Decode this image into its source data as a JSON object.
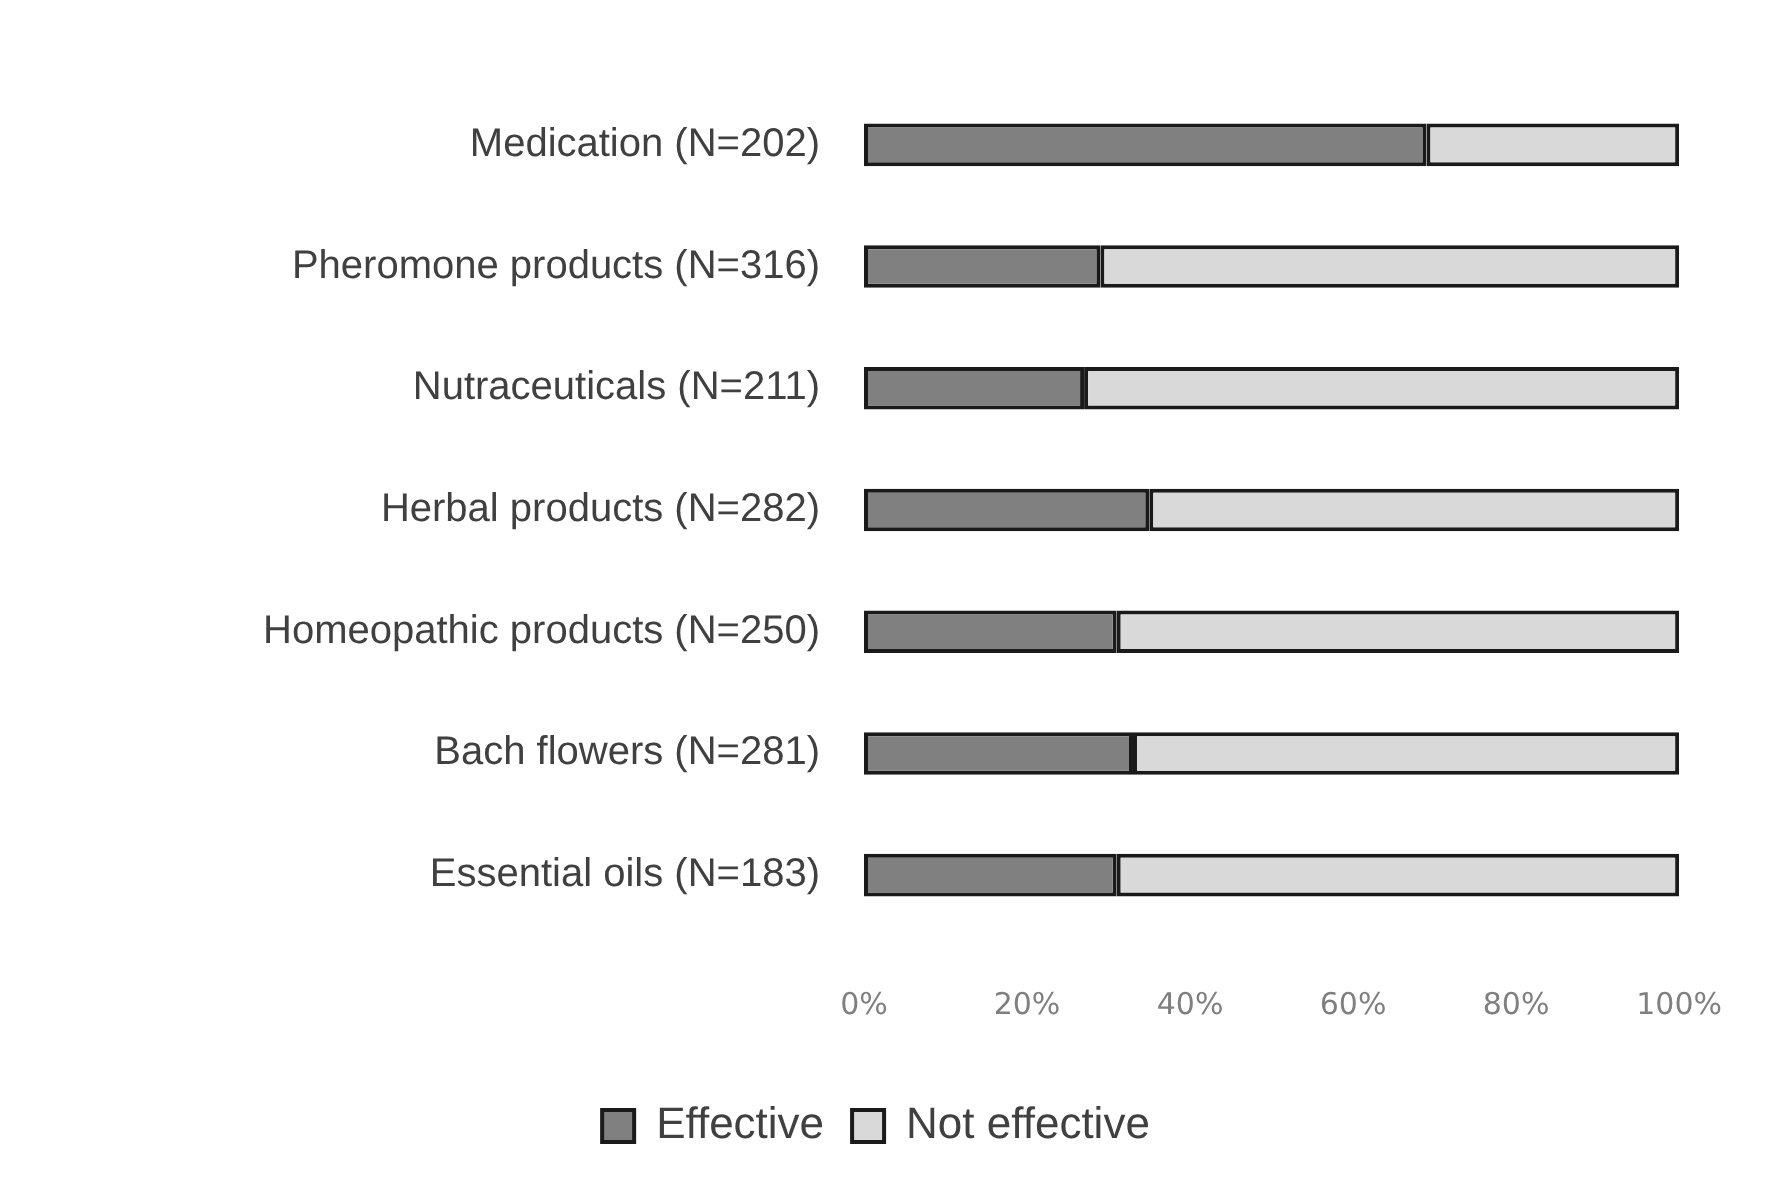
{
  "chart_data": {
    "type": "bar",
    "orientation": "horizontal",
    "stacked": true,
    "categories": [
      "Medication (N=202)",
      "Pheromone products (N=316)",
      "Nutraceuticals (N=211)",
      "Herbal products (N=282)",
      "Homeopathic products (N=250)",
      "Bach flowers (N=281)",
      "Essential oils (N=183)"
    ],
    "series": [
      {
        "name": "Effective",
        "color": "#808080",
        "values": [
          69,
          29,
          27,
          35,
          31,
          33,
          31
        ]
      },
      {
        "name": "Not effective",
        "color": "#d9d9d9",
        "values": [
          31,
          71,
          73,
          65,
          69,
          67,
          69
        ]
      }
    ],
    "xlim": [
      0,
      100
    ],
    "xticks": [
      {
        "value": 0,
        "label": "0%"
      },
      {
        "value": 20,
        "label": "20%"
      },
      {
        "value": 40,
        "label": "40%"
      },
      {
        "value": 60,
        "label": "60%"
      },
      {
        "value": 80,
        "label": "80%"
      },
      {
        "value": 100,
        "label": "100%"
      }
    ],
    "grid": false,
    "legend": "bottom"
  }
}
